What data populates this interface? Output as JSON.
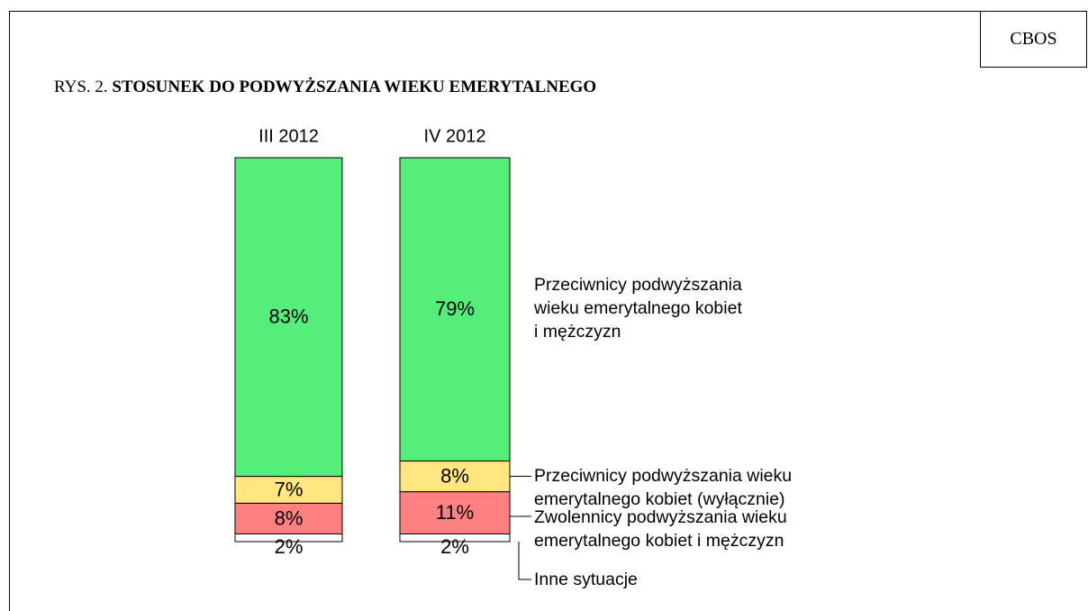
{
  "chart_data": {
    "type": "stacked_bar",
    "source": "CBOS",
    "figure_label": "RYS. 2.",
    "title": "STOSUNEK DO PODWYŻSZANIA WIEKU EMERYTALNEGO",
    "categories": [
      "III 2012",
      "IV 2012"
    ],
    "ylim": [
      0,
      100
    ],
    "series": [
      {
        "name": "Inne sytuacje",
        "color": "#ffffff",
        "values": [
          2,
          2
        ],
        "value_labels": [
          "2%",
          "2%"
        ]
      },
      {
        "name": "Zwolennicy podwyższania wieku\nemerytalnego kobiet i mężczyzn",
        "color": "#ff8080",
        "values": [
          8,
          11
        ],
        "value_labels": [
          "8%",
          "11%"
        ]
      },
      {
        "name": "Przeciwnicy podwyższania wieku\nemerytalnego kobiet (wyłącznie)",
        "color": "#ffe680",
        "values": [
          7,
          8
        ],
        "value_labels": [
          "7%",
          "8%"
        ]
      },
      {
        "name": "Przeciwnicy podwyższania\nwieku emerytalnego kobiet\ni mężczyzn",
        "color": "#55ee7a",
        "values": [
          83,
          79
        ],
        "value_labels": [
          "83%",
          "79%"
        ]
      }
    ]
  }
}
